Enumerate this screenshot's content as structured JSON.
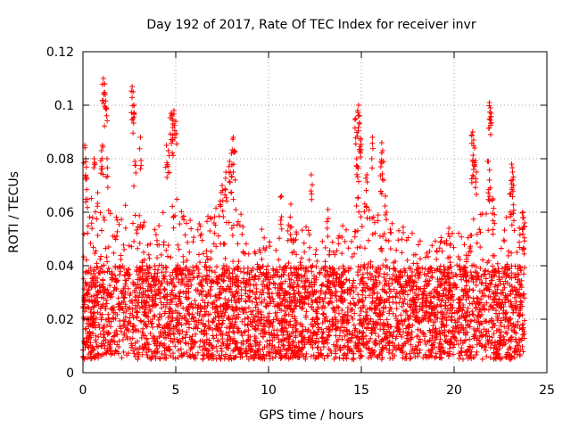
{
  "chart_data": {
    "type": "scatter",
    "title": "Day 192 of 2017, Rate Of TEC Index for receiver invr",
    "xlabel": "GPS time / hours",
    "ylabel": "ROTI / TECUs",
    "xlim": [
      0,
      25
    ],
    "ylim": [
      0,
      0.12
    ],
    "grid": true,
    "marker": "+",
    "color": "#ff0000",
    "x_ticks": [
      0,
      5,
      10,
      15,
      20,
      25
    ],
    "x_tick_labels": [
      "0",
      "5",
      "10",
      "15",
      "20",
      "25"
    ],
    "y_ticks": [
      0,
      0.02,
      0.04,
      0.06,
      0.08,
      0.1,
      0.12
    ],
    "y_tick_labels": [
      "0",
      "0.02",
      "0.04",
      "0.06",
      "0.08",
      "0.1",
      "0.12"
    ],
    "series": [
      {
        "name": "ROTI",
        "x_range": [
          0,
          23.8
        ],
        "dense_band": [
          0.005,
          0.04
        ],
        "envelope_hours": [
          0,
          0.5,
          1,
          1.5,
          2,
          2.5,
          3,
          3.5,
          4,
          4.5,
          5,
          5.5,
          6,
          6.5,
          7,
          7.5,
          8,
          8.5,
          9,
          9.5,
          10,
          10.5,
          11,
          11.5,
          12,
          12.5,
          13,
          13.5,
          14,
          14.5,
          15,
          15.5,
          16,
          16.5,
          17,
          17.5,
          18,
          18.5,
          19,
          19.5,
          20,
          20.5,
          21,
          21.5,
          22,
          22.5,
          23,
          23.5
        ],
        "envelope_max": [
          0.07,
          0.065,
          0.07,
          0.06,
          0.06,
          0.065,
          0.06,
          0.055,
          0.06,
          0.065,
          0.068,
          0.058,
          0.058,
          0.058,
          0.062,
          0.065,
          0.068,
          0.06,
          0.055,
          0.055,
          0.05,
          0.055,
          0.06,
          0.055,
          0.058,
          0.055,
          0.05,
          0.05,
          0.055,
          0.06,
          0.065,
          0.062,
          0.065,
          0.06,
          0.055,
          0.055,
          0.05,
          0.05,
          0.05,
          0.055,
          0.055,
          0.05,
          0.058,
          0.06,
          0.065,
          0.055,
          0.06,
          0.055
        ],
        "peaks": [
          {
            "x": 0.1,
            "y": 0.085
          },
          {
            "x": 0.15,
            "y": 0.08
          },
          {
            "x": 0.2,
            "y": 0.073
          },
          {
            "x": 0.6,
            "y": 0.08
          },
          {
            "x": 1.0,
            "y": 0.083
          },
          {
            "x": 1.05,
            "y": 0.085
          },
          {
            "x": 1.1,
            "y": 0.11
          },
          {
            "x": 1.15,
            "y": 0.108
          },
          {
            "x": 1.2,
            "y": 0.104
          },
          {
            "x": 1.25,
            "y": 0.099
          },
          {
            "x": 1.3,
            "y": 0.08
          },
          {
            "x": 2.65,
            "y": 0.107
          },
          {
            "x": 2.7,
            "y": 0.105
          },
          {
            "x": 2.75,
            "y": 0.1
          },
          {
            "x": 2.8,
            "y": 0.079
          },
          {
            "x": 3.1,
            "y": 0.088
          },
          {
            "x": 4.5,
            "y": 0.085
          },
          {
            "x": 4.6,
            "y": 0.083
          },
          {
            "x": 4.75,
            "y": 0.097
          },
          {
            "x": 4.8,
            "y": 0.096
          },
          {
            "x": 4.9,
            "y": 0.098
          },
          {
            "x": 5.0,
            "y": 0.094
          },
          {
            "x": 4.85,
            "y": 0.093
          },
          {
            "x": 7.5,
            "y": 0.07
          },
          {
            "x": 7.7,
            "y": 0.075
          },
          {
            "x": 7.9,
            "y": 0.079
          },
          {
            "x": 8.0,
            "y": 0.082
          },
          {
            "x": 8.1,
            "y": 0.088
          },
          {
            "x": 8.15,
            "y": 0.083
          },
          {
            "x": 10.7,
            "y": 0.066
          },
          {
            "x": 11.2,
            "y": 0.063
          },
          {
            "x": 12.3,
            "y": 0.074
          },
          {
            "x": 13.2,
            "y": 0.061
          },
          {
            "x": 14.7,
            "y": 0.095
          },
          {
            "x": 14.8,
            "y": 0.098
          },
          {
            "x": 14.85,
            "y": 0.1
          },
          {
            "x": 14.9,
            "y": 0.093
          },
          {
            "x": 14.95,
            "y": 0.087
          },
          {
            "x": 14.75,
            "y": 0.08
          },
          {
            "x": 14.8,
            "y": 0.077
          },
          {
            "x": 15.3,
            "y": 0.074
          },
          {
            "x": 15.6,
            "y": 0.088
          },
          {
            "x": 16.1,
            "y": 0.086
          },
          {
            "x": 16.15,
            "y": 0.083
          },
          {
            "x": 16.05,
            "y": 0.077
          },
          {
            "x": 16.3,
            "y": 0.066
          },
          {
            "x": 21.0,
            "y": 0.09
          },
          {
            "x": 21.05,
            "y": 0.087
          },
          {
            "x": 21.1,
            "y": 0.084
          },
          {
            "x": 21.0,
            "y": 0.079
          },
          {
            "x": 21.2,
            "y": 0.075
          },
          {
            "x": 21.9,
            "y": 0.101
          },
          {
            "x": 21.95,
            "y": 0.099
          },
          {
            "x": 22.0,
            "y": 0.097
          },
          {
            "x": 21.85,
            "y": 0.079
          },
          {
            "x": 21.9,
            "y": 0.072
          },
          {
            "x": 22.1,
            "y": 0.065
          },
          {
            "x": 23.1,
            "y": 0.078
          },
          {
            "x": 23.15,
            "y": 0.075
          },
          {
            "x": 23.2,
            "y": 0.07
          },
          {
            "x": 23.05,
            "y": 0.067
          },
          {
            "x": 23.7,
            "y": 0.06
          },
          {
            "x": 23.75,
            "y": 0.058
          },
          {
            "x": 23.8,
            "y": 0.056
          }
        ]
      }
    ]
  }
}
